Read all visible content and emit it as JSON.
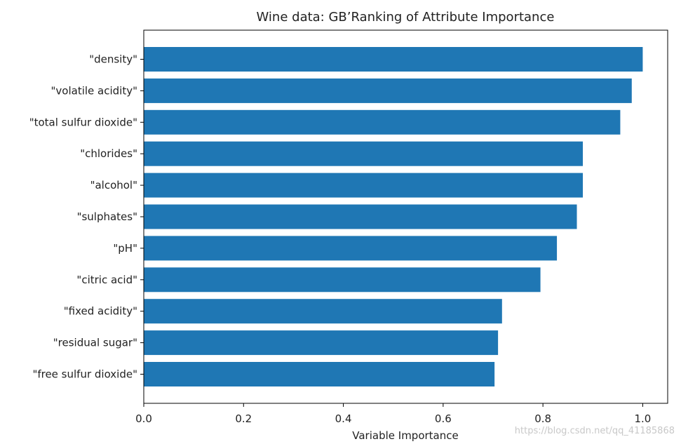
{
  "chart_data": {
    "type": "bar",
    "orientation": "horizontal",
    "title": "Wine data: GB’Ranking of Attribute Importance",
    "xlabel": "Variable Importance",
    "ylabel": "",
    "xlim": [
      0.0,
      1.05
    ],
    "xticks": [
      0.0,
      0.2,
      0.4,
      0.6,
      0.8,
      1.0
    ],
    "xtick_labels": [
      "0.0",
      "0.2",
      "0.4",
      "0.6",
      "0.8",
      "1.0"
    ],
    "grid": false,
    "bar_color": "#1f77b4",
    "categories": [
      "\"density\"",
      "\"volatile acidity\"",
      "\"total sulfur dioxide\"",
      "\"chlorides\"",
      "\"alcohol\"",
      "\"sulphates\"",
      "\"pH\"",
      "\"citric acid\"",
      "\"fixed acidity\"",
      "\"residual sugar\"",
      "\"free sulfur dioxide\""
    ],
    "values": [
      1.0,
      0.978,
      0.955,
      0.88,
      0.88,
      0.868,
      0.828,
      0.795,
      0.718,
      0.71,
      0.703
    ]
  },
  "watermark": "https://blog.csdn.net/qq_41185868"
}
